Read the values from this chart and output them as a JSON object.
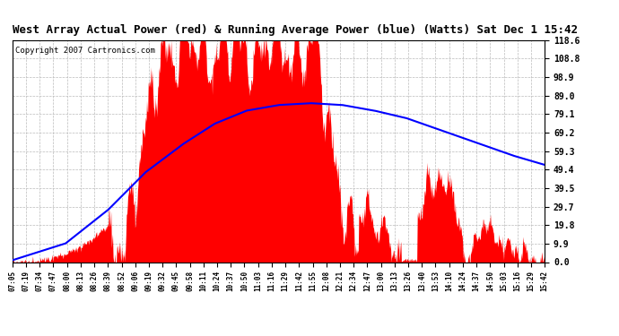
{
  "title": "West Array Actual Power (red) & Running Average Power (blue) (Watts) Sat Dec 1 15:42",
  "copyright": "Copyright 2007 Cartronics.com",
  "yticks": [
    0.0,
    9.9,
    19.8,
    29.7,
    39.5,
    49.4,
    59.3,
    69.2,
    79.1,
    89.0,
    98.9,
    108.8,
    118.6
  ],
  "ylim": [
    0.0,
    118.6
  ],
  "xtick_labels": [
    "07:05",
    "07:19",
    "07:34",
    "07:47",
    "08:00",
    "08:13",
    "08:26",
    "08:39",
    "08:52",
    "09:06",
    "09:19",
    "09:32",
    "09:45",
    "09:58",
    "10:11",
    "10:24",
    "10:37",
    "10:50",
    "11:03",
    "11:16",
    "11:29",
    "11:42",
    "11:55",
    "12:08",
    "12:21",
    "12:34",
    "12:47",
    "13:00",
    "13:13",
    "13:26",
    "13:40",
    "13:53",
    "14:10",
    "14:24",
    "14:37",
    "14:50",
    "15:03",
    "15:16",
    "15:29",
    "15:42"
  ],
  "actual_color": "#FF0000",
  "avg_color": "#0000FF",
  "bg_color": "#FFFFFF",
  "grid_color": "#AAAAAA",
  "title_fontsize": 9,
  "copyright_fontsize": 6.5
}
